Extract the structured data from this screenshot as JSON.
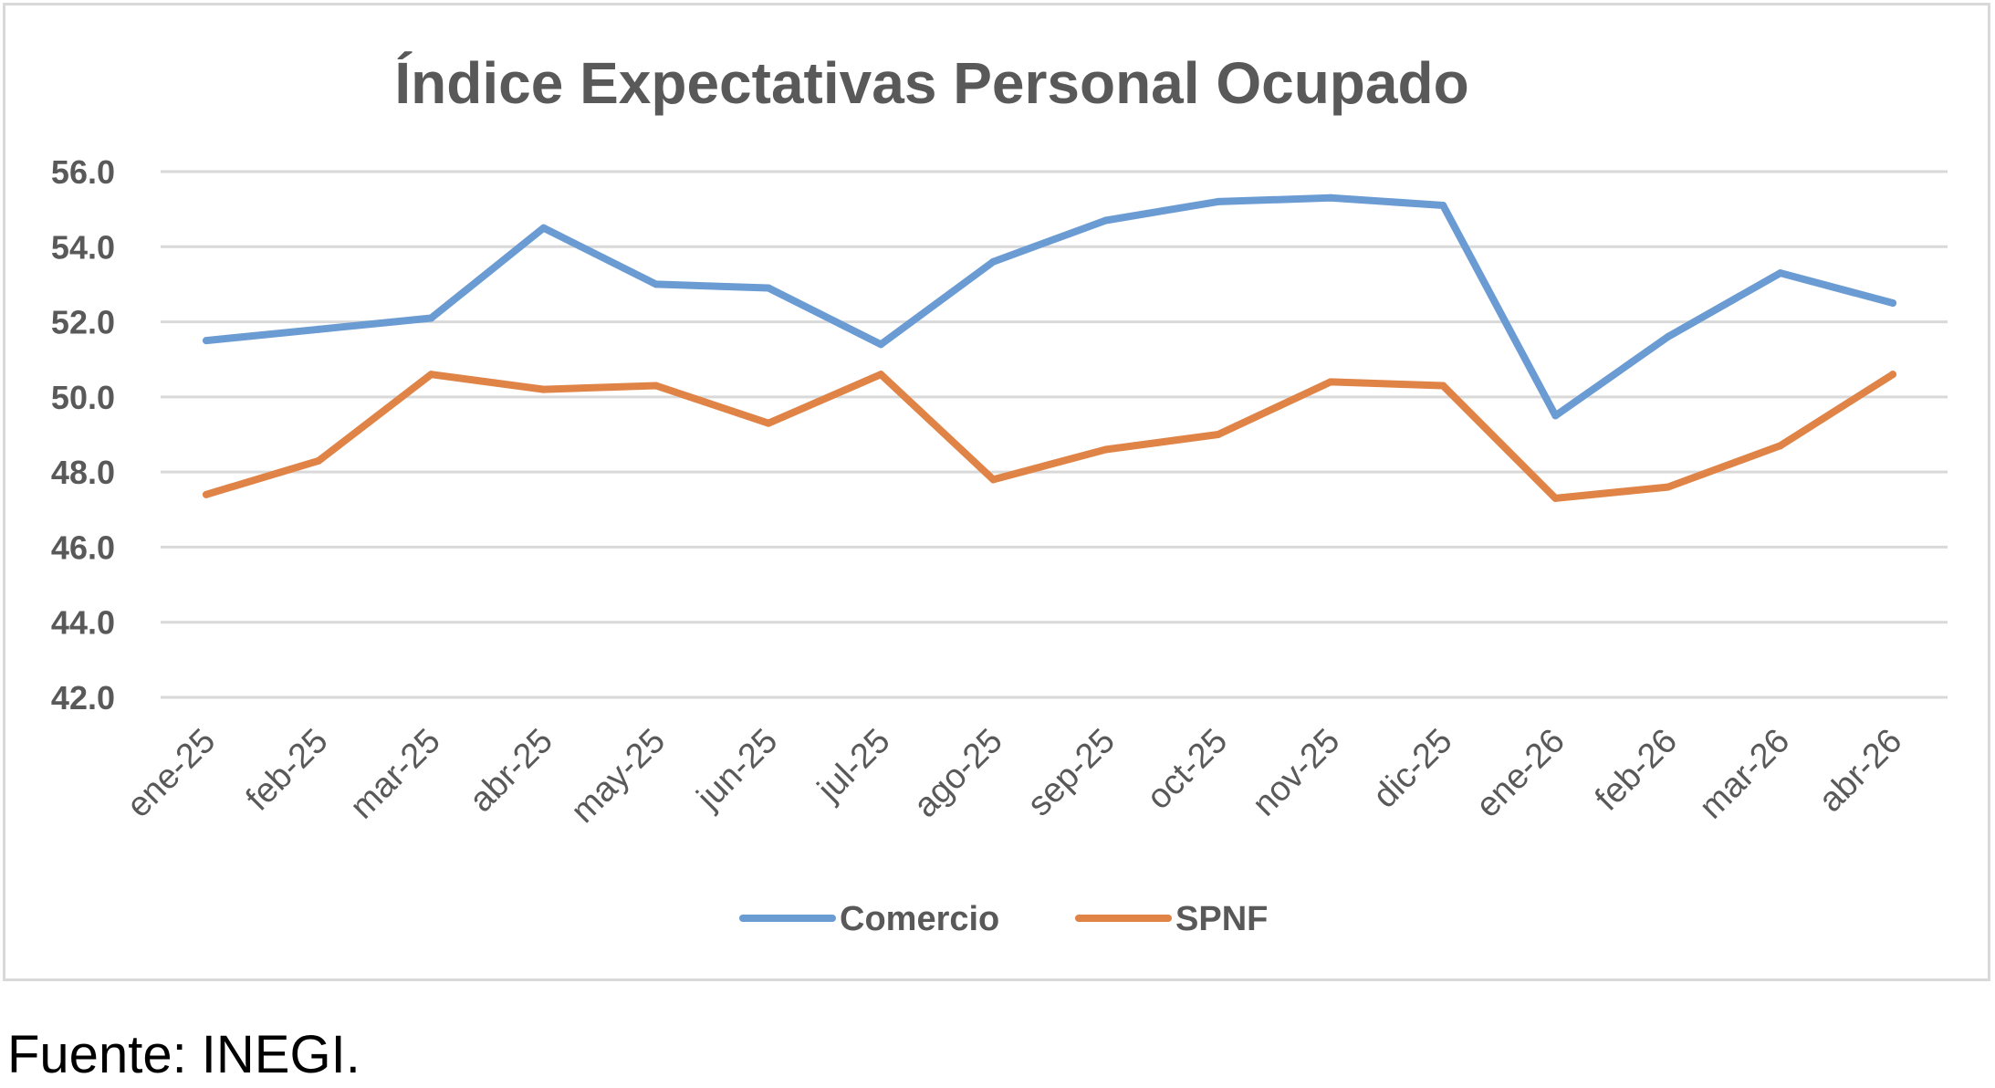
{
  "chart_data": {
    "type": "line",
    "title": "Índice Expectativas Personal Ocupado",
    "xlabel": "",
    "ylabel": "",
    "categories": [
      "ene-25",
      "feb-25",
      "mar-25",
      "abr-25",
      "may-25",
      "jun-25",
      "jul-25",
      "ago-25",
      "sep-25",
      "oct-25",
      "nov-25",
      "dic-25",
      "ene-26",
      "feb-26",
      "mar-26",
      "abr-26"
    ],
    "series": [
      {
        "name": "Comercio",
        "color": "#6b9bd3",
        "values": [
          51.5,
          51.8,
          52.1,
          54.5,
          53.0,
          52.9,
          51.4,
          53.6,
          54.7,
          55.2,
          55.3,
          55.1,
          49.5,
          51.6,
          53.3,
          52.5
        ]
      },
      {
        "name": "SPNF",
        "color": "#e08346",
        "values": [
          47.4,
          48.3,
          50.6,
          50.2,
          50.3,
          49.3,
          50.6,
          47.8,
          48.6,
          49.0,
          50.4,
          50.3,
          47.3,
          47.6,
          48.7,
          50.6
        ]
      }
    ],
    "ylim": [
      42.0,
      56.0
    ],
    "yticks": [
      "42.0",
      "44.0",
      "46.0",
      "48.0",
      "50.0",
      "52.0",
      "54.0",
      "56.0"
    ],
    "grid": true,
    "legend": "bottom-center"
  },
  "source_note": "Fuente: INEGI."
}
